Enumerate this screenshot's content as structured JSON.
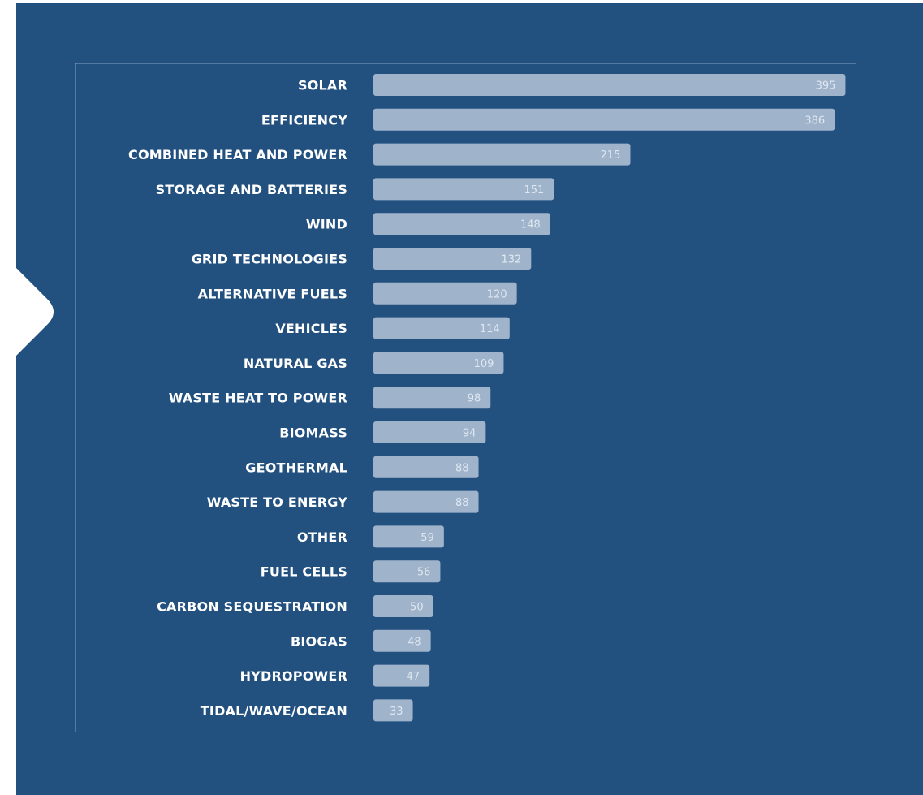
{
  "colors": {
    "background": "#22507f",
    "bar": "#9fb3cb",
    "axis_line": "#8aa2bf",
    "category_text": "#ffffff",
    "value_text": "#dfe7f1",
    "pointer": "#ffffff"
  },
  "chart_data": {
    "type": "bar",
    "orientation": "horizontal",
    "categories": [
      "SOLAR",
      "EFFICIENCY",
      "COMBINED HEAT AND POWER",
      "STORAGE AND BATTERIES",
      "WIND",
      "GRID TECHNOLOGIES",
      "ALTERNATIVE FUELS",
      "VEHICLES",
      "NATURAL GAS",
      "WASTE HEAT TO POWER",
      "BIOMASS",
      "GEOTHERMAL",
      "WASTE TO ENERGY",
      "OTHER",
      "FUEL CELLS",
      "CARBON SEQUESTRATION",
      "BIOGAS",
      "HYDROPOWER",
      "TIDAL/WAVE/OCEAN"
    ],
    "values": [
      395,
      386,
      215,
      151,
      148,
      132,
      120,
      114,
      109,
      98,
      94,
      88,
      88,
      59,
      56,
      50,
      48,
      47,
      33
    ],
    "value_labels": [
      "395",
      "386",
      "215",
      "151",
      "148",
      "132",
      "120",
      "114",
      "109",
      "98",
      "94",
      "88",
      "88",
      "59",
      "56",
      "50",
      "48",
      "47",
      "33"
    ],
    "xlim": [
      0,
      400
    ],
    "grid": false,
    "legend": "none",
    "title": "",
    "xlabel": "",
    "ylabel": ""
  }
}
